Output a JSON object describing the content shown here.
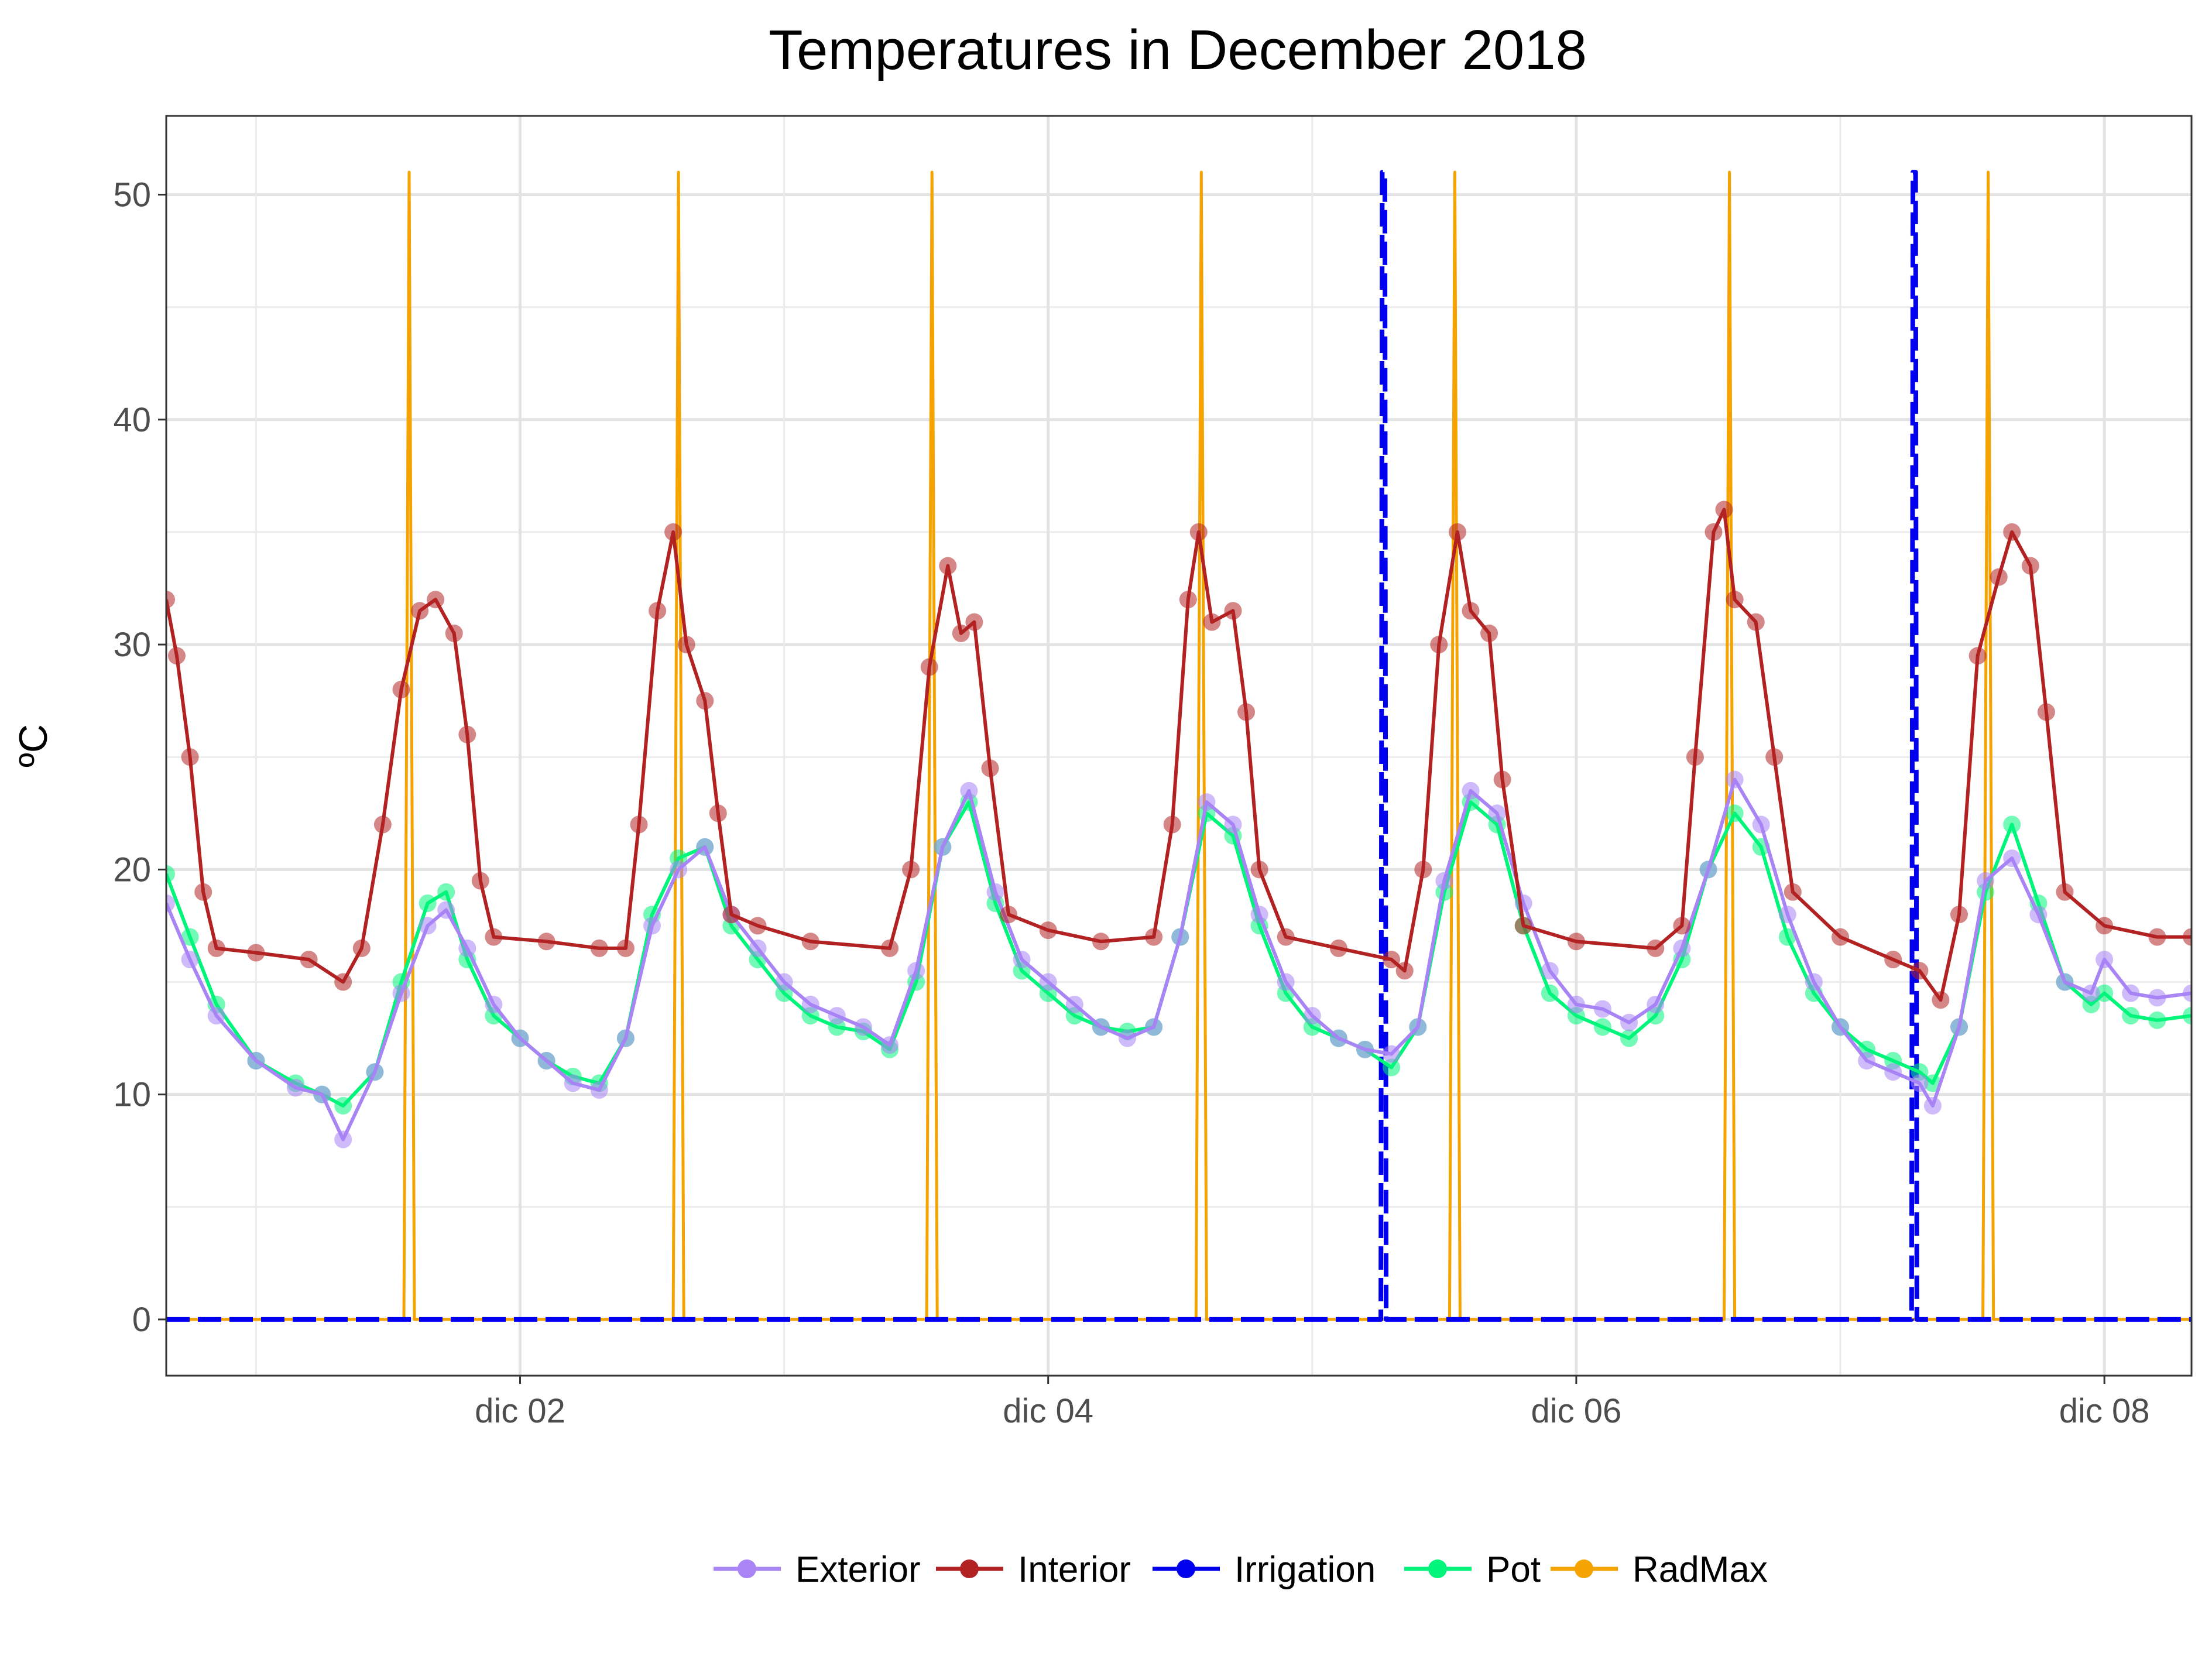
{
  "chart_data": {
    "type": "line",
    "title": "Temperatures in December 2018",
    "xlabel": "",
    "ylabel": "ºC",
    "x_range_days": [
      0.66,
      8.33
    ],
    "ylim": [
      -2.5,
      53.5
    ],
    "x_ticks": [
      {
        "label": "dic 02",
        "day": 2
      },
      {
        "label": "dic 04",
        "day": 4
      },
      {
        "label": "dic 06",
        "day": 6
      },
      {
        "label": "dic 08",
        "day": 8
      }
    ],
    "y_ticks": [
      0,
      10,
      20,
      30,
      40,
      50
    ],
    "grid": true,
    "legend_position": "bottom",
    "colors": {
      "Exterior": "#a884f5",
      "Interior": "#b22222",
      "Irrigation": "#0000ee",
      "Pot": "#00f57a",
      "RadMax": "#f5a300"
    },
    "series": [
      {
        "name": "Exterior",
        "points": [
          [
            0.66,
            18.5
          ],
          [
            0.75,
            16.0
          ],
          [
            0.85,
            13.5
          ],
          [
            1.0,
            11.5
          ],
          [
            1.15,
            10.3
          ],
          [
            1.25,
            10.0
          ],
          [
            1.33,
            8.0
          ],
          [
            1.45,
            11.0
          ],
          [
            1.55,
            14.5
          ],
          [
            1.65,
            17.5
          ],
          [
            1.72,
            18.2
          ],
          [
            1.8,
            16.5
          ],
          [
            1.9,
            14.0
          ],
          [
            2.0,
            12.5
          ],
          [
            2.1,
            11.5
          ],
          [
            2.2,
            10.5
          ],
          [
            2.3,
            10.2
          ],
          [
            2.4,
            12.5
          ],
          [
            2.5,
            17.5
          ],
          [
            2.6,
            20.0
          ],
          [
            2.7,
            21.0
          ],
          [
            2.8,
            18.0
          ],
          [
            2.9,
            16.5
          ],
          [
            3.0,
            15.0
          ],
          [
            3.1,
            14.0
          ],
          [
            3.2,
            13.5
          ],
          [
            3.3,
            13.0
          ],
          [
            3.4,
            12.2
          ],
          [
            3.5,
            15.5
          ],
          [
            3.6,
            21.0
          ],
          [
            3.7,
            23.5
          ],
          [
            3.8,
            19.0
          ],
          [
            3.9,
            16.0
          ],
          [
            4.0,
            15.0
          ],
          [
            4.1,
            14.0
          ],
          [
            4.2,
            13.0
          ],
          [
            4.3,
            12.5
          ],
          [
            4.4,
            13.0
          ],
          [
            4.5,
            17.0
          ],
          [
            4.6,
            23.0
          ],
          [
            4.7,
            22.0
          ],
          [
            4.8,
            18.0
          ],
          [
            4.9,
            15.0
          ],
          [
            5.0,
            13.5
          ],
          [
            5.1,
            12.5
          ],
          [
            5.2,
            12.0
          ],
          [
            5.3,
            11.8
          ],
          [
            5.4,
            13.0
          ],
          [
            5.5,
            19.5
          ],
          [
            5.6,
            23.5
          ],
          [
            5.7,
            22.5
          ],
          [
            5.8,
            18.5
          ],
          [
            5.9,
            15.5
          ],
          [
            6.0,
            14.0
          ],
          [
            6.1,
            13.8
          ],
          [
            6.2,
            13.2
          ],
          [
            6.3,
            14.0
          ],
          [
            6.4,
            16.5
          ],
          [
            6.5,
            20.0
          ],
          [
            6.6,
            24.0
          ],
          [
            6.7,
            22.0
          ],
          [
            6.8,
            18.0
          ],
          [
            6.9,
            15.0
          ],
          [
            7.0,
            13.0
          ],
          [
            7.1,
            11.5
          ],
          [
            7.2,
            11.0
          ],
          [
            7.3,
            10.5
          ],
          [
            7.35,
            9.5
          ],
          [
            7.45,
            13.0
          ],
          [
            7.55,
            19.5
          ],
          [
            7.65,
            20.5
          ],
          [
            7.75,
            18.0
          ],
          [
            7.85,
            15.0
          ],
          [
            7.95,
            14.5
          ],
          [
            8.0,
            16.0
          ],
          [
            8.1,
            14.5
          ],
          [
            8.2,
            14.3
          ],
          [
            8.33,
            14.5
          ]
        ]
      },
      {
        "name": "Interior",
        "points": [
          [
            0.66,
            32.0
          ],
          [
            0.7,
            29.5
          ],
          [
            0.75,
            25.0
          ],
          [
            0.8,
            19.0
          ],
          [
            0.85,
            16.5
          ],
          [
            1.0,
            16.3
          ],
          [
            1.2,
            16.0
          ],
          [
            1.33,
            15.0
          ],
          [
            1.4,
            16.5
          ],
          [
            1.48,
            22.0
          ],
          [
            1.55,
            28.0
          ],
          [
            1.62,
            31.5
          ],
          [
            1.68,
            32.0
          ],
          [
            1.75,
            30.5
          ],
          [
            1.8,
            26.0
          ],
          [
            1.85,
            19.5
          ],
          [
            1.9,
            17.0
          ],
          [
            2.1,
            16.8
          ],
          [
            2.3,
            16.5
          ],
          [
            2.4,
            16.5
          ],
          [
            2.45,
            22.0
          ],
          [
            2.52,
            31.5
          ],
          [
            2.58,
            35.0
          ],
          [
            2.63,
            30.0
          ],
          [
            2.7,
            27.5
          ],
          [
            2.75,
            22.5
          ],
          [
            2.8,
            18.0
          ],
          [
            2.9,
            17.5
          ],
          [
            3.1,
            16.8
          ],
          [
            3.4,
            16.5
          ],
          [
            3.48,
            20.0
          ],
          [
            3.55,
            29.0
          ],
          [
            3.62,
            33.5
          ],
          [
            3.67,
            30.5
          ],
          [
            3.72,
            31.0
          ],
          [
            3.78,
            24.5
          ],
          [
            3.85,
            18.0
          ],
          [
            4.0,
            17.3
          ],
          [
            4.2,
            16.8
          ],
          [
            4.4,
            17.0
          ],
          [
            4.47,
            22.0
          ],
          [
            4.53,
            32.0
          ],
          [
            4.57,
            35.0
          ],
          [
            4.62,
            31.0
          ],
          [
            4.7,
            31.5
          ],
          [
            4.75,
            27.0
          ],
          [
            4.8,
            20.0
          ],
          [
            4.9,
            17.0
          ],
          [
            5.1,
            16.5
          ],
          [
            5.3,
            16.0
          ],
          [
            5.35,
            15.5
          ],
          [
            5.42,
            20.0
          ],
          [
            5.48,
            30.0
          ],
          [
            5.55,
            35.0
          ],
          [
            5.6,
            31.5
          ],
          [
            5.67,
            30.5
          ],
          [
            5.72,
            24.0
          ],
          [
            5.8,
            17.5
          ],
          [
            6.0,
            16.8
          ],
          [
            6.3,
            16.5
          ],
          [
            6.4,
            17.5
          ],
          [
            6.45,
            25.0
          ],
          [
            6.52,
            35.0
          ],
          [
            6.56,
            36.0
          ],
          [
            6.6,
            32.0
          ],
          [
            6.68,
            31.0
          ],
          [
            6.75,
            25.0
          ],
          [
            6.82,
            19.0
          ],
          [
            7.0,
            17.0
          ],
          [
            7.2,
            16.0
          ],
          [
            7.3,
            15.5
          ],
          [
            7.38,
            14.2
          ],
          [
            7.45,
            18.0
          ],
          [
            7.52,
            29.5
          ],
          [
            7.6,
            33.0
          ],
          [
            7.65,
            35.0
          ],
          [
            7.72,
            33.5
          ],
          [
            7.78,
            27.0
          ],
          [
            7.85,
            19.0
          ],
          [
            8.0,
            17.5
          ],
          [
            8.2,
            17.0
          ],
          [
            8.33,
            17.0
          ]
        ]
      },
      {
        "name": "Irrigation",
        "points": [
          [
            0.66,
            0
          ],
          [
            5.26,
            0
          ],
          [
            5.265,
            51
          ],
          [
            5.275,
            51
          ],
          [
            5.28,
            0
          ],
          [
            7.27,
            0
          ],
          [
            7.275,
            51
          ],
          [
            7.285,
            51
          ],
          [
            7.29,
            0
          ],
          [
            8.33,
            0
          ]
        ]
      },
      {
        "name": "Pot",
        "points": [
          [
            0.66,
            19.8
          ],
          [
            0.75,
            17.0
          ],
          [
            0.85,
            14.0
          ],
          [
            1.0,
            11.5
          ],
          [
            1.15,
            10.5
          ],
          [
            1.25,
            10.0
          ],
          [
            1.33,
            9.5
          ],
          [
            1.45,
            11.0
          ],
          [
            1.55,
            15.0
          ],
          [
            1.65,
            18.5
          ],
          [
            1.72,
            19.0
          ],
          [
            1.8,
            16.0
          ],
          [
            1.9,
            13.5
          ],
          [
            2.0,
            12.5
          ],
          [
            2.1,
            11.5
          ],
          [
            2.2,
            10.8
          ],
          [
            2.3,
            10.5
          ],
          [
            2.4,
            12.5
          ],
          [
            2.5,
            18.0
          ],
          [
            2.6,
            20.5
          ],
          [
            2.7,
            21.0
          ],
          [
            2.8,
            17.5
          ],
          [
            2.9,
            16.0
          ],
          [
            3.0,
            14.5
          ],
          [
            3.1,
            13.5
          ],
          [
            3.2,
            13.0
          ],
          [
            3.3,
            12.8
          ],
          [
            3.4,
            12.0
          ],
          [
            3.5,
            15.0
          ],
          [
            3.6,
            21.0
          ],
          [
            3.7,
            23.0
          ],
          [
            3.8,
            18.5
          ],
          [
            3.9,
            15.5
          ],
          [
            4.0,
            14.5
          ],
          [
            4.1,
            13.5
          ],
          [
            4.2,
            13.0
          ],
          [
            4.3,
            12.8
          ],
          [
            4.4,
            13.0
          ],
          [
            4.5,
            17.0
          ],
          [
            4.6,
            22.5
          ],
          [
            4.7,
            21.5
          ],
          [
            4.8,
            17.5
          ],
          [
            4.9,
            14.5
          ],
          [
            5.0,
            13.0
          ],
          [
            5.1,
            12.5
          ],
          [
            5.2,
            12.0
          ],
          [
            5.3,
            11.2
          ],
          [
            5.4,
            13.0
          ],
          [
            5.5,
            19.0
          ],
          [
            5.6,
            23.0
          ],
          [
            5.7,
            22.0
          ],
          [
            5.8,
            17.5
          ],
          [
            5.9,
            14.5
          ],
          [
            6.0,
            13.5
          ],
          [
            6.1,
            13.0
          ],
          [
            6.2,
            12.5
          ],
          [
            6.3,
            13.5
          ],
          [
            6.4,
            16.0
          ],
          [
            6.5,
            20.0
          ],
          [
            6.6,
            22.5
          ],
          [
            6.7,
            21.0
          ],
          [
            6.8,
            17.0
          ],
          [
            6.9,
            14.5
          ],
          [
            7.0,
            13.0
          ],
          [
            7.1,
            12.0
          ],
          [
            7.2,
            11.5
          ],
          [
            7.3,
            11.0
          ],
          [
            7.35,
            10.5
          ],
          [
            7.45,
            13.0
          ],
          [
            7.55,
            19.0
          ],
          [
            7.65,
            22.0
          ],
          [
            7.75,
            18.5
          ],
          [
            7.85,
            15.0
          ],
          [
            7.95,
            14.0
          ],
          [
            8.0,
            14.5
          ],
          [
            8.1,
            13.5
          ],
          [
            8.2,
            13.3
          ],
          [
            8.33,
            13.5
          ]
        ]
      },
      {
        "name": "RadMax",
        "points": [
          [
            0.66,
            0
          ],
          [
            1.56,
            0
          ],
          [
            1.58,
            51
          ],
          [
            1.6,
            0
          ],
          [
            2.58,
            0
          ],
          [
            2.6,
            51
          ],
          [
            2.62,
            0
          ],
          [
            3.54,
            0
          ],
          [
            3.56,
            51
          ],
          [
            3.58,
            0
          ],
          [
            4.56,
            0
          ],
          [
            4.58,
            51
          ],
          [
            4.6,
            0
          ],
          [
            5.52,
            0
          ],
          [
            5.54,
            51
          ],
          [
            5.56,
            0
          ],
          [
            6.56,
            0
          ],
          [
            6.58,
            51
          ],
          [
            6.6,
            0
          ],
          [
            7.54,
            0
          ],
          [
            7.56,
            51
          ],
          [
            7.58,
            0
          ],
          [
            8.33,
            0
          ]
        ]
      }
    ]
  }
}
